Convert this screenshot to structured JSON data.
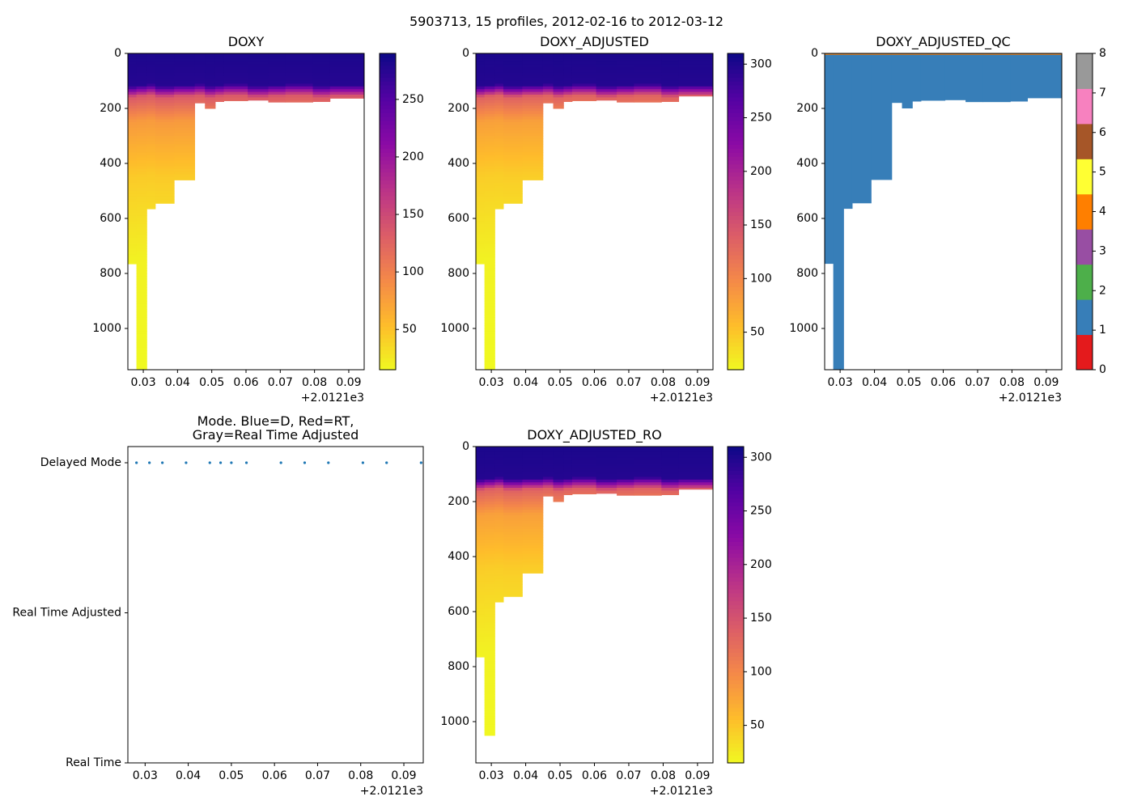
{
  "suptitle": "5903713, 15 profiles, 2012-02-16 to 2012-03-12",
  "chart_data": [
    {
      "id": "doxy",
      "type": "heatmap",
      "title": "DOXY",
      "x_ticks": [
        "0.03",
        "0.04",
        "0.05",
        "0.06",
        "0.07",
        "0.08",
        "0.09"
      ],
      "x_offset_label": "+2.0121e3",
      "y_ticks": [
        "0",
        "200",
        "400",
        "600",
        "800",
        "1000"
      ],
      "xlim": [
        0.0255,
        0.0945
      ],
      "ylim": [
        1150,
        0
      ],
      "colorbar": {
        "ticks": [
          "50",
          "100",
          "150",
          "200",
          "250"
        ],
        "vmin": 15,
        "vmax": 290,
        "cmap": "plasma_r"
      },
      "profiles": [
        {
          "x0": 0.0255,
          "x1": 0.028,
          "max_depth": 765
        },
        {
          "x0": 0.028,
          "x1": 0.031,
          "max_depth": 1150
        },
        {
          "x0": 0.031,
          "x1": 0.0335,
          "max_depth": 565
        },
        {
          "x0": 0.0335,
          "x1": 0.039,
          "max_depth": 545
        },
        {
          "x0": 0.039,
          "x1": 0.045,
          "max_depth": 460
        },
        {
          "x0": 0.045,
          "x1": 0.048,
          "max_depth": 180
        },
        {
          "x0": 0.048,
          "x1": 0.051,
          "max_depth": 200
        },
        {
          "x0": 0.051,
          "x1": 0.0535,
          "max_depth": 175
        },
        {
          "x0": 0.0535,
          "x1": 0.0605,
          "max_depth": 172
        },
        {
          "x0": 0.0605,
          "x1": 0.0665,
          "max_depth": 170
        },
        {
          "x0": 0.0665,
          "x1": 0.0715,
          "max_depth": 177
        },
        {
          "x0": 0.0715,
          "x1": 0.0795,
          "max_depth": 177
        },
        {
          "x0": 0.0795,
          "x1": 0.0845,
          "max_depth": 175
        },
        {
          "x0": 0.0845,
          "x1": 0.0945,
          "max_depth": 163
        }
      ]
    },
    {
      "id": "doxy-adjusted",
      "type": "heatmap",
      "title": "DOXY_ADJUSTED",
      "x_ticks": [
        "0.03",
        "0.04",
        "0.05",
        "0.06",
        "0.07",
        "0.08",
        "0.09"
      ],
      "x_offset_label": "+2.0121e3",
      "y_ticks": [
        "0",
        "200",
        "400",
        "600",
        "800",
        "1000"
      ],
      "xlim": [
        0.0255,
        0.0945
      ],
      "ylim": [
        1150,
        0
      ],
      "colorbar": {
        "ticks": [
          "50",
          "100",
          "150",
          "200",
          "250",
          "300"
        ],
        "vmin": 15,
        "vmax": 310,
        "cmap": "plasma_r"
      },
      "profiles": [
        {
          "x0": 0.0255,
          "x1": 0.028,
          "max_depth": 765
        },
        {
          "x0": 0.028,
          "x1": 0.031,
          "max_depth": 1150
        },
        {
          "x0": 0.031,
          "x1": 0.0335,
          "max_depth": 565
        },
        {
          "x0": 0.0335,
          "x1": 0.039,
          "max_depth": 545
        },
        {
          "x0": 0.039,
          "x1": 0.045,
          "max_depth": 460
        },
        {
          "x0": 0.045,
          "x1": 0.048,
          "max_depth": 180
        },
        {
          "x0": 0.048,
          "x1": 0.051,
          "max_depth": 200
        },
        {
          "x0": 0.051,
          "x1": 0.0535,
          "max_depth": 175
        },
        {
          "x0": 0.0535,
          "x1": 0.0605,
          "max_depth": 172
        },
        {
          "x0": 0.0605,
          "x1": 0.0665,
          "max_depth": 170
        },
        {
          "x0": 0.0665,
          "x1": 0.0715,
          "max_depth": 177
        },
        {
          "x0": 0.0715,
          "x1": 0.0795,
          "max_depth": 177
        },
        {
          "x0": 0.0795,
          "x1": 0.0845,
          "max_depth": 175
        },
        {
          "x0": 0.0845,
          "x1": 0.0945,
          "max_depth": 155
        }
      ]
    },
    {
      "id": "doxy-adjusted-qc",
      "type": "heatmap",
      "title": "DOXY_ADJUSTED_QC",
      "x_ticks": [
        "0.03",
        "0.04",
        "0.05",
        "0.06",
        "0.07",
        "0.08",
        "0.09"
      ],
      "x_offset_label": "+2.0121e3",
      "y_ticks": [
        "0",
        "200",
        "400",
        "600",
        "800",
        "1000"
      ],
      "xlim": [
        0.0255,
        0.0945
      ],
      "ylim": [
        1150,
        0
      ],
      "qc_flag_fill": 1,
      "colorbar": {
        "ticks": [
          "0",
          "1",
          "2",
          "3",
          "4",
          "5",
          "6",
          "7",
          "8"
        ],
        "classes": [
          {
            "flag": 0,
            "color": "#e41a1c"
          },
          {
            "flag": 1,
            "color": "#377eb8"
          },
          {
            "flag": 2,
            "color": "#4daf4a"
          },
          {
            "flag": 3,
            "color": "#984ea3"
          },
          {
            "flag": 4,
            "color": "#ff7f00"
          },
          {
            "flag": 5,
            "color": "#ffff33"
          },
          {
            "flag": 6,
            "color": "#a65628"
          },
          {
            "flag": 7,
            "color": "#f781bf"
          },
          {
            "flag": 8,
            "color": "#999999"
          }
        ]
      },
      "profiles": [
        {
          "x0": 0.0255,
          "x1": 0.028,
          "max_depth": 765
        },
        {
          "x0": 0.028,
          "x1": 0.031,
          "max_depth": 1150
        },
        {
          "x0": 0.031,
          "x1": 0.0335,
          "max_depth": 565
        },
        {
          "x0": 0.0335,
          "x1": 0.039,
          "max_depth": 545
        },
        {
          "x0": 0.039,
          "x1": 0.045,
          "max_depth": 460
        },
        {
          "x0": 0.045,
          "x1": 0.048,
          "max_depth": 180
        },
        {
          "x0": 0.048,
          "x1": 0.051,
          "max_depth": 200
        },
        {
          "x0": 0.051,
          "x1": 0.0535,
          "max_depth": 175
        },
        {
          "x0": 0.0535,
          "x1": 0.0605,
          "max_depth": 172
        },
        {
          "x0": 0.0605,
          "x1": 0.0665,
          "max_depth": 170
        },
        {
          "x0": 0.0665,
          "x1": 0.0715,
          "max_depth": 177
        },
        {
          "x0": 0.0715,
          "x1": 0.0795,
          "max_depth": 177
        },
        {
          "x0": 0.0795,
          "x1": 0.0845,
          "max_depth": 175
        },
        {
          "x0": 0.0845,
          "x1": 0.0945,
          "max_depth": 163
        }
      ]
    },
    {
      "id": "mode",
      "type": "scatter",
      "title_lines": [
        "Mode. Blue=D, Red=RT,",
        "Gray=Real Time Adjusted"
      ],
      "x_ticks": [
        "0.03",
        "0.04",
        "0.05",
        "0.06",
        "0.07",
        "0.08",
        "0.09"
      ],
      "x_offset_label": "+2.0121e3",
      "xlim": [
        0.026,
        0.0945
      ],
      "y_categories": [
        "Real Time",
        "Real Time Adjusted",
        "Delayed Mode"
      ],
      "point_color": "#1f77b4",
      "points": [
        {
          "x": 0.028,
          "mode": "Delayed Mode"
        },
        {
          "x": 0.031,
          "mode": "Delayed Mode"
        },
        {
          "x": 0.034,
          "mode": "Delayed Mode"
        },
        {
          "x": 0.0395,
          "mode": "Delayed Mode"
        },
        {
          "x": 0.045,
          "mode": "Delayed Mode"
        },
        {
          "x": 0.0475,
          "mode": "Delayed Mode"
        },
        {
          "x": 0.05,
          "mode": "Delayed Mode"
        },
        {
          "x": 0.0535,
          "mode": "Delayed Mode"
        },
        {
          "x": 0.0615,
          "mode": "Delayed Mode"
        },
        {
          "x": 0.067,
          "mode": "Delayed Mode"
        },
        {
          "x": 0.0725,
          "mode": "Delayed Mode"
        },
        {
          "x": 0.0805,
          "mode": "Delayed Mode"
        },
        {
          "x": 0.086,
          "mode": "Delayed Mode"
        },
        {
          "x": 0.094,
          "mode": "Delayed Mode"
        }
      ]
    },
    {
      "id": "doxy-adjusted-ro",
      "type": "heatmap",
      "title": "DOXY_ADJUSTED_RO",
      "x_ticks": [
        "0.03",
        "0.04",
        "0.05",
        "0.06",
        "0.07",
        "0.08",
        "0.09"
      ],
      "x_offset_label": "+2.0121e3",
      "y_ticks": [
        "0",
        "200",
        "400",
        "600",
        "800",
        "1000"
      ],
      "xlim": [
        0.0255,
        0.0945
      ],
      "ylim": [
        1150,
        0
      ],
      "colorbar": {
        "ticks": [
          "50",
          "100",
          "150",
          "200",
          "250",
          "300"
        ],
        "vmin": 15,
        "vmax": 310,
        "cmap": "plasma_r"
      },
      "profiles": [
        {
          "x0": 0.0255,
          "x1": 0.028,
          "max_depth": 765
        },
        {
          "x0": 0.028,
          "x1": 0.031,
          "max_depth": 1050
        },
        {
          "x0": 0.031,
          "x1": 0.0335,
          "max_depth": 565
        },
        {
          "x0": 0.0335,
          "x1": 0.039,
          "max_depth": 545
        },
        {
          "x0": 0.039,
          "x1": 0.045,
          "max_depth": 460
        },
        {
          "x0": 0.045,
          "x1": 0.048,
          "max_depth": 180
        },
        {
          "x0": 0.048,
          "x1": 0.051,
          "max_depth": 200
        },
        {
          "x0": 0.051,
          "x1": 0.0535,
          "max_depth": 175
        },
        {
          "x0": 0.0535,
          "x1": 0.0605,
          "max_depth": 172
        },
        {
          "x0": 0.0605,
          "x1": 0.0665,
          "max_depth": 170
        },
        {
          "x0": 0.0665,
          "x1": 0.0715,
          "max_depth": 177
        },
        {
          "x0": 0.0715,
          "x1": 0.0795,
          "max_depth": 177
        },
        {
          "x0": 0.0795,
          "x1": 0.0845,
          "max_depth": 175
        },
        {
          "x0": 0.0845,
          "x1": 0.0945,
          "max_depth": 155
        }
      ]
    }
  ]
}
